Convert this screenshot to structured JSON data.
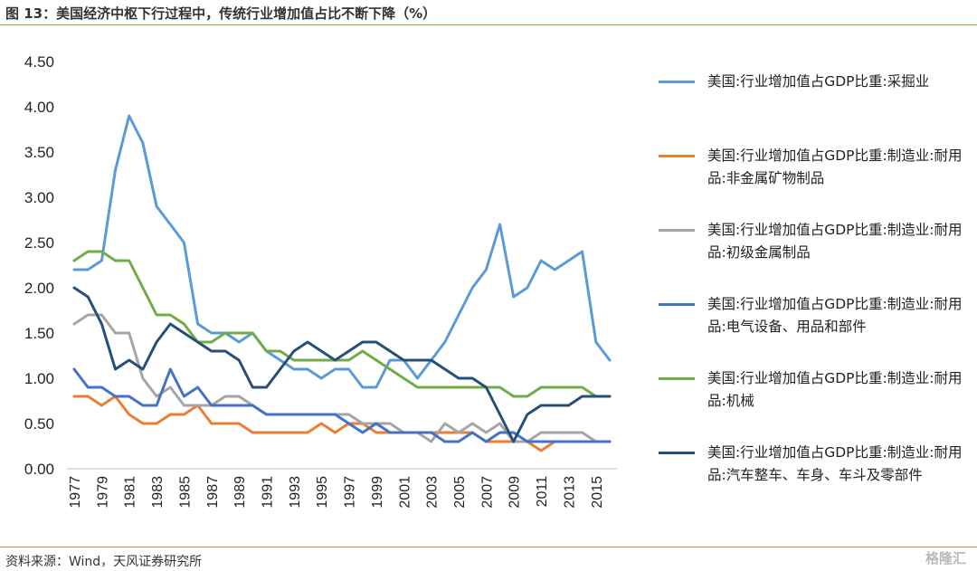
{
  "header": {
    "title": "图 13：美国经济中枢下行过程中，传统行业增加值占比不断下降（%）"
  },
  "footer": {
    "source": "资料来源：Wind，天风证券研究所",
    "watermark": "格隆汇"
  },
  "chart_data": {
    "type": "line",
    "title": "图 13：美国经济中枢下行过程中，传统行业增加值占比不断下降（%）",
    "xlabel": "",
    "ylabel": "",
    "ylim": [
      0,
      4.5
    ],
    "yticks": [
      "0.00",
      "0.50",
      "1.00",
      "1.50",
      "2.00",
      "2.50",
      "3.00",
      "3.50",
      "4.00",
      "4.50"
    ],
    "xticks": [
      "1977",
      "1979",
      "1981",
      "1983",
      "1985",
      "1987",
      "1989",
      "1991",
      "1993",
      "1995",
      "1997",
      "1999",
      "2001",
      "2003",
      "2005",
      "2007",
      "2009",
      "2011",
      "2013",
      "2015"
    ],
    "x": [
      1977,
      1978,
      1979,
      1980,
      1981,
      1982,
      1983,
      1984,
      1985,
      1986,
      1987,
      1988,
      1989,
      1990,
      1991,
      1992,
      1993,
      1994,
      1995,
      1996,
      1997,
      1998,
      1999,
      2000,
      2001,
      2002,
      2003,
      2004,
      2005,
      2006,
      2007,
      2008,
      2009,
      2010,
      2011,
      2012,
      2013,
      2014,
      2015,
      2016
    ],
    "grid": false,
    "legend_position": "right",
    "series": [
      {
        "name": "美国:行业增加值占GDP比重:采掘业",
        "color": "#5b9bd5",
        "values": [
          2.2,
          2.2,
          2.3,
          3.3,
          3.9,
          3.6,
          2.9,
          2.7,
          2.5,
          1.6,
          1.5,
          1.5,
          1.4,
          1.5,
          1.3,
          1.2,
          1.1,
          1.1,
          1.0,
          1.1,
          1.1,
          0.9,
          0.9,
          1.2,
          1.2,
          1.0,
          1.2,
          1.4,
          1.7,
          2.0,
          2.2,
          2.7,
          1.9,
          2.0,
          2.3,
          2.2,
          2.3,
          2.4,
          1.4,
          1.2
        ]
      },
      {
        "name": "美国:行业增加值占GDP比重:制造业:耐用品:非金属矿物制品",
        "color": "#ed7d31",
        "values": [
          0.8,
          0.8,
          0.7,
          0.8,
          0.6,
          0.5,
          0.5,
          0.6,
          0.6,
          0.7,
          0.5,
          0.5,
          0.5,
          0.4,
          0.4,
          0.4,
          0.4,
          0.4,
          0.5,
          0.4,
          0.5,
          0.5,
          0.4,
          0.4,
          0.4,
          0.4,
          0.4,
          0.4,
          0.4,
          0.4,
          0.3,
          0.3,
          0.3,
          0.3,
          0.2,
          0.3,
          0.3,
          0.3,
          0.3,
          0.3
        ]
      },
      {
        "name": "美国:行业增加值占GDP比重:制造业:耐用品:初级金属制品",
        "color": "#a5a5a5",
        "values": [
          1.6,
          1.7,
          1.7,
          1.5,
          1.5,
          1.0,
          0.8,
          0.9,
          0.7,
          0.7,
          0.7,
          0.8,
          0.8,
          0.7,
          0.6,
          0.6,
          0.6,
          0.6,
          0.6,
          0.6,
          0.6,
          0.5,
          0.5,
          0.5,
          0.4,
          0.4,
          0.3,
          0.5,
          0.4,
          0.5,
          0.4,
          0.5,
          0.3,
          0.3,
          0.4,
          0.4,
          0.4,
          0.4,
          0.3,
          0.3
        ]
      },
      {
        "name": "美国:行业增加值占GDP比重:制造业:耐用品:电气设备、用品和部件",
        "color": "#4472c4",
        "values": [
          1.1,
          0.9,
          0.9,
          0.8,
          0.8,
          0.7,
          0.7,
          1.1,
          0.8,
          0.9,
          0.7,
          0.7,
          0.7,
          0.7,
          0.6,
          0.6,
          0.6,
          0.6,
          0.6,
          0.6,
          0.5,
          0.4,
          0.5,
          0.4,
          0.4,
          0.4,
          0.4,
          0.3,
          0.3,
          0.4,
          0.3,
          0.4,
          0.4,
          0.3,
          0.3,
          0.3,
          0.3,
          0.3,
          0.3,
          0.3
        ]
      },
      {
        "name": "美国:行业增加值占GDP比重:制造业:耐用品:机械",
        "color": "#70ad47",
        "values": [
          2.3,
          2.4,
          2.4,
          2.3,
          2.3,
          2.0,
          1.7,
          1.7,
          1.6,
          1.4,
          1.4,
          1.5,
          1.5,
          1.5,
          1.3,
          1.3,
          1.2,
          1.2,
          1.2,
          1.2,
          1.2,
          1.3,
          1.2,
          1.1,
          1.0,
          0.9,
          0.9,
          0.9,
          0.9,
          0.9,
          0.9,
          0.9,
          0.8,
          0.8,
          0.9,
          0.9,
          0.9,
          0.9,
          0.8,
          0.8
        ]
      },
      {
        "name": "美国:行业增加值占GDP比重:制造业:耐用品:汽车整车、车身、车斗及零部件",
        "color": "#264f78",
        "values": [
          2.0,
          1.9,
          1.6,
          1.1,
          1.2,
          1.1,
          1.4,
          1.6,
          1.5,
          1.4,
          1.3,
          1.3,
          1.2,
          0.9,
          0.9,
          1.1,
          1.3,
          1.4,
          1.3,
          1.2,
          1.3,
          1.4,
          1.4,
          1.3,
          1.2,
          1.2,
          1.2,
          1.1,
          1.0,
          1.0,
          0.9,
          0.6,
          0.3,
          0.6,
          0.7,
          0.7,
          0.7,
          0.8,
          0.8,
          0.8
        ]
      }
    ]
  }
}
